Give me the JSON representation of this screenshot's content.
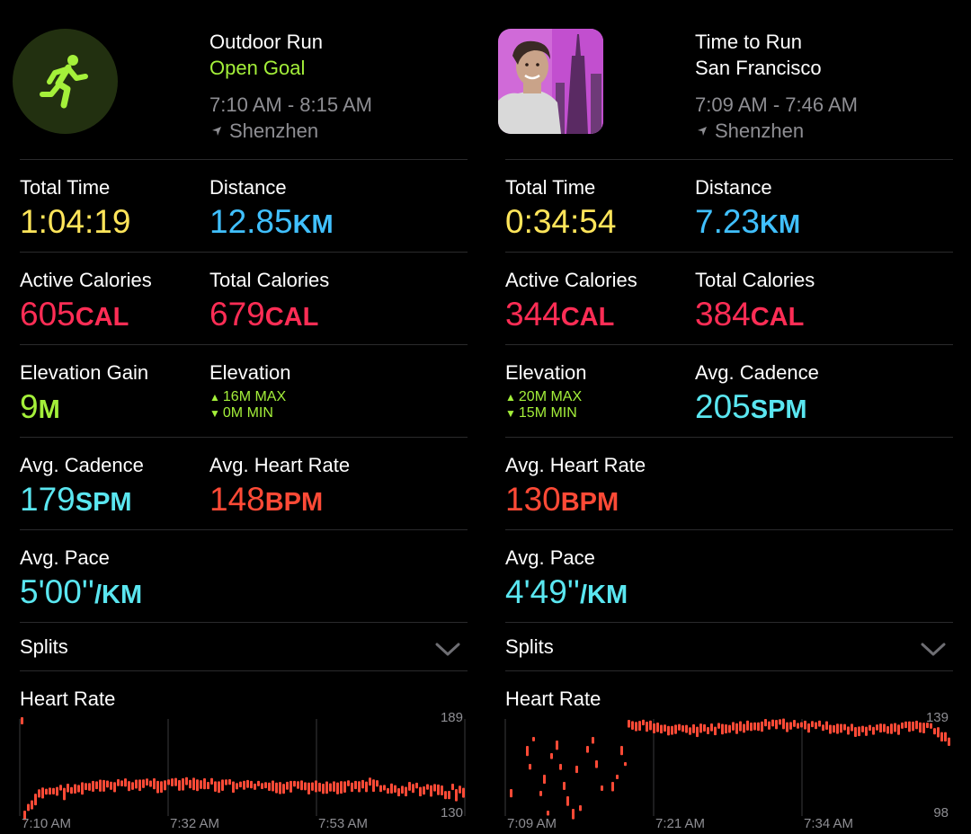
{
  "workouts": [
    {
      "title": "Outdoor Run",
      "subtitle": "Open Goal",
      "time_range": "7:10 AM - 8:15 AM",
      "location": "Shenzhen",
      "icon": "running-figure-icon",
      "metrics": {
        "total_time": {
          "label": "Total Time",
          "value": "1:04:19",
          "unit": ""
        },
        "distance": {
          "label": "Distance",
          "value": "12.85",
          "unit": "KM"
        },
        "active_calories": {
          "label": "Active Calories",
          "value": "605",
          "unit": "CAL"
        },
        "total_calories": {
          "label": "Total Calories",
          "value": "679",
          "unit": "CAL"
        },
        "elevation_gain": {
          "label": "Elevation Gain",
          "value": "9",
          "unit": "M"
        },
        "elevation": {
          "label": "Elevation",
          "max": "16M MAX",
          "min": "0M MIN"
        },
        "avg_cadence": {
          "label": "Avg. Cadence",
          "value": "179",
          "unit": "SPM"
        },
        "avg_heart_rate": {
          "label": "Avg. Heart Rate",
          "value": "148",
          "unit": "BPM"
        },
        "avg_pace": {
          "label": "Avg. Pace",
          "value": "5'00''",
          "unit": "/KM"
        }
      },
      "splits_label": "Splits",
      "heart_rate": {
        "title": "Heart Rate",
        "max_label": "189",
        "min_label": "130",
        "time_labels": [
          "7:10 AM",
          "7:32 AM",
          "7:53 AM"
        ]
      }
    },
    {
      "title": "Time to Run",
      "subtitle": "San Francisco",
      "time_range": "7:09 AM - 7:46 AM",
      "location": "Shenzhen",
      "icon": "episode-thumbnail",
      "metrics": {
        "total_time": {
          "label": "Total Time",
          "value": "0:34:54",
          "unit": ""
        },
        "distance": {
          "label": "Distance",
          "value": "7.23",
          "unit": "KM"
        },
        "active_calories": {
          "label": "Active Calories",
          "value": "344",
          "unit": "CAL"
        },
        "total_calories": {
          "label": "Total Calories",
          "value": "384",
          "unit": "CAL"
        },
        "elevation": {
          "label": "Elevation",
          "max": "20M MAX",
          "min": "15M MIN"
        },
        "avg_cadence": {
          "label": "Avg. Cadence",
          "value": "205",
          "unit": "SPM"
        },
        "avg_heart_rate": {
          "label": "Avg. Heart Rate",
          "value": "130",
          "unit": "BPM"
        },
        "avg_pace": {
          "label": "Avg. Pace",
          "value": "4'49''",
          "unit": "/KM"
        }
      },
      "splits_label": "Splits",
      "heart_rate": {
        "title": "Heart Rate",
        "max_label": "139",
        "min_label": "98",
        "time_labels": [
          "7:09 AM",
          "7:21 AM",
          "7:34 AM"
        ]
      }
    }
  ],
  "colors": {
    "time": "#ffe55a",
    "distance": "#40c0ff",
    "calories": "#ff2d55",
    "elevation": "#a4f03a",
    "cadence": "#5ae6f0",
    "heart_rate": "#ff4a36",
    "secondary_text": "#8e8e93",
    "background": "#000000"
  }
}
